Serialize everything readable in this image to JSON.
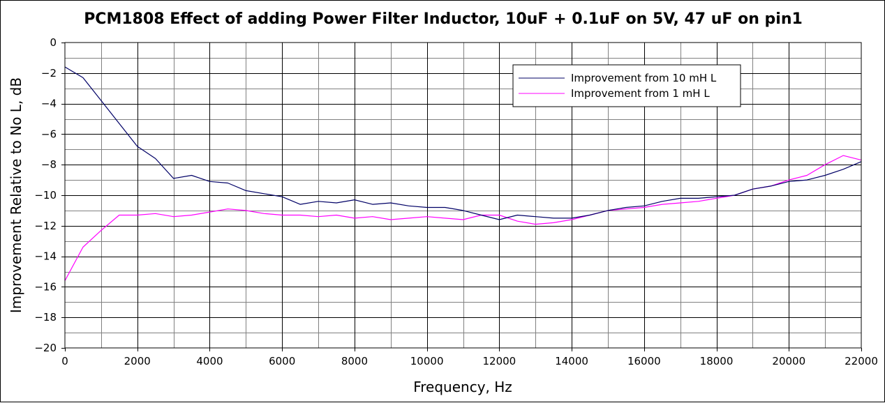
{
  "chart_data": {
    "type": "line",
    "title": "PCM1808 Effect of adding Power Filter Inductor, 10uF + 0.1uF on 5V, 47 uF on pin1",
    "xlabel": "Frequency, Hz",
    "ylabel": "Improvement Relative to No L, dB",
    "xlim": [
      0,
      22000
    ],
    "ylim": [
      -20,
      0
    ],
    "x_major_step": 2000,
    "x_minor_step": 1000,
    "y_major_step": 2,
    "y_minor_step": 1,
    "x_tick_labels": [
      "0",
      "2000",
      "4000",
      "6000",
      "8000",
      "10000",
      "12000",
      "14000",
      "16000",
      "18000",
      "20000",
      "22000"
    ],
    "y_tick_labels": [
      "0",
      "−2",
      "−4",
      "−6",
      "−8",
      "−10",
      "−12",
      "−14",
      "−16",
      "−18",
      "−20"
    ],
    "grid": true,
    "legend_position": "top-right",
    "x": [
      0,
      500,
      1000,
      1500,
      2000,
      2500,
      3000,
      3500,
      4000,
      4500,
      5000,
      5500,
      6000,
      6500,
      7000,
      7500,
      8000,
      8500,
      9000,
      9500,
      10000,
      10500,
      11000,
      11500,
      12000,
      12500,
      13000,
      13500,
      14000,
      14500,
      15000,
      15500,
      16000,
      16500,
      17000,
      17500,
      18000,
      18500,
      19000,
      19500,
      20000,
      20500,
      21000,
      21500,
      22000
    ],
    "series": [
      {
        "name": "Improvement from 10 mH L",
        "color": "#000066",
        "values": [
          -1.6,
          -2.3,
          -3.8,
          -5.3,
          -6.8,
          -7.6,
          -8.9,
          -8.7,
          -9.1,
          -9.2,
          -9.7,
          -9.9,
          -10.1,
          -10.6,
          -10.4,
          -10.5,
          -10.3,
          -10.6,
          -10.5,
          -10.7,
          -10.8,
          -10.8,
          -11.0,
          -11.3,
          -11.6,
          -11.3,
          -11.4,
          -11.5,
          -11.5,
          -11.3,
          -11.0,
          -10.8,
          -10.7,
          -10.4,
          -10.2,
          -10.2,
          -10.1,
          -10.0,
          -9.6,
          -9.4,
          -9.1,
          -9.0,
          -8.7,
          -8.3,
          -7.8
        ]
      },
      {
        "name": "Improvement from 1 mH L",
        "color": "#ff00ff",
        "values": [
          -15.6,
          -13.4,
          -12.3,
          -11.3,
          -11.3,
          -11.2,
          -11.4,
          -11.3,
          -11.1,
          -10.9,
          -11.0,
          -11.2,
          -11.3,
          -11.3,
          -11.4,
          -11.3,
          -11.5,
          -11.4,
          -11.6,
          -11.5,
          -11.4,
          -11.5,
          -11.6,
          -11.3,
          -11.3,
          -11.7,
          -11.9,
          -11.8,
          -11.6,
          -11.3,
          -11.0,
          -10.9,
          -10.8,
          -10.6,
          -10.5,
          -10.4,
          -10.2,
          -10.0,
          -9.6,
          -9.4,
          -9.0,
          -8.7,
          -8.0,
          -7.4,
          -7.7
        ]
      }
    ]
  }
}
